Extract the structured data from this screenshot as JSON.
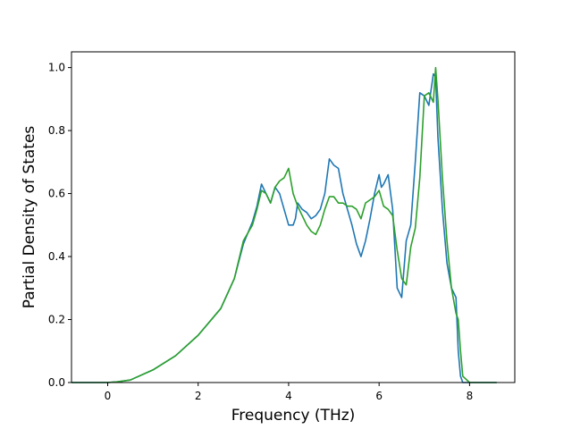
{
  "chart_data": {
    "type": "line",
    "title": "",
    "xlabel": "Frequency (THz)",
    "ylabel": "Partial Density of States",
    "xlim": [
      -0.8,
      9.0
    ],
    "ylim": [
      0.0,
      1.05
    ],
    "xticks": [
      0,
      2,
      4,
      6,
      8
    ],
    "yticks": [
      0.0,
      0.2,
      0.4,
      0.6,
      0.8,
      1.0
    ],
    "xtick_labels": [
      "0",
      "2",
      "4",
      "6",
      "8"
    ],
    "ytick_labels": [
      "0.0",
      "0.2",
      "0.4",
      "0.6",
      "0.8",
      "1.0"
    ],
    "grid": false,
    "legend": "none",
    "series": [
      {
        "color": "#1f77b4",
        "x": [
          -0.8,
          0.0,
          0.2,
          0.5,
          1.0,
          1.5,
          2.0,
          2.5,
          2.8,
          3.0,
          3.2,
          3.3,
          3.4,
          3.5,
          3.6,
          3.7,
          3.8,
          3.9,
          4.0,
          4.1,
          4.15,
          4.2,
          4.3,
          4.4,
          4.5,
          4.6,
          4.7,
          4.8,
          4.9,
          4.95,
          5.0,
          5.1,
          5.2,
          5.3,
          5.4,
          5.5,
          5.6,
          5.7,
          5.8,
          5.9,
          6.0,
          6.05,
          6.1,
          6.2,
          6.3,
          6.4,
          6.5,
          6.6,
          6.7,
          6.8,
          6.9,
          7.0,
          7.1,
          7.2,
          7.25,
          7.3,
          7.4,
          7.5,
          7.6,
          7.7,
          7.75,
          7.8,
          7.85,
          8.0,
          8.6
        ],
        "y": [
          0.0,
          0.0,
          0.002,
          0.008,
          0.04,
          0.085,
          0.15,
          0.235,
          0.33,
          0.44,
          0.51,
          0.56,
          0.63,
          0.6,
          0.57,
          0.62,
          0.6,
          0.55,
          0.5,
          0.5,
          0.52,
          0.57,
          0.55,
          0.54,
          0.52,
          0.53,
          0.55,
          0.6,
          0.71,
          0.7,
          0.69,
          0.68,
          0.6,
          0.55,
          0.5,
          0.44,
          0.4,
          0.45,
          0.52,
          0.6,
          0.66,
          0.62,
          0.63,
          0.66,
          0.55,
          0.3,
          0.27,
          0.45,
          0.5,
          0.7,
          0.92,
          0.91,
          0.88,
          0.98,
          0.97,
          0.78,
          0.55,
          0.38,
          0.3,
          0.27,
          0.1,
          0.02,
          0.0,
          0.0,
          0.0
        ]
      },
      {
        "color": "#2ca02c",
        "x": [
          -0.8,
          0.0,
          0.2,
          0.5,
          1.0,
          1.5,
          2.0,
          2.5,
          2.8,
          3.0,
          3.2,
          3.3,
          3.4,
          3.5,
          3.6,
          3.7,
          3.8,
          3.9,
          4.0,
          4.1,
          4.2,
          4.3,
          4.4,
          4.5,
          4.6,
          4.7,
          4.8,
          4.9,
          5.0,
          5.1,
          5.2,
          5.3,
          5.4,
          5.5,
          5.6,
          5.7,
          5.8,
          5.9,
          6.0,
          6.1,
          6.2,
          6.3,
          6.4,
          6.5,
          6.6,
          6.7,
          6.8,
          6.9,
          7.0,
          7.1,
          7.2,
          7.25,
          7.3,
          7.4,
          7.5,
          7.6,
          7.7,
          7.75,
          7.8,
          7.85,
          8.0,
          8.6
        ],
        "y": [
          0.0,
          0.0,
          0.002,
          0.008,
          0.04,
          0.085,
          0.15,
          0.235,
          0.33,
          0.45,
          0.5,
          0.55,
          0.61,
          0.6,
          0.57,
          0.62,
          0.64,
          0.65,
          0.68,
          0.6,
          0.56,
          0.53,
          0.5,
          0.48,
          0.47,
          0.5,
          0.55,
          0.59,
          0.59,
          0.57,
          0.57,
          0.56,
          0.56,
          0.55,
          0.52,
          0.57,
          0.58,
          0.59,
          0.61,
          0.56,
          0.55,
          0.53,
          0.42,
          0.33,
          0.31,
          0.43,
          0.49,
          0.65,
          0.91,
          0.92,
          0.89,
          1.0,
          0.9,
          0.65,
          0.45,
          0.3,
          0.22,
          0.2,
          0.1,
          0.02,
          0.0,
          0.0
        ]
      }
    ]
  }
}
